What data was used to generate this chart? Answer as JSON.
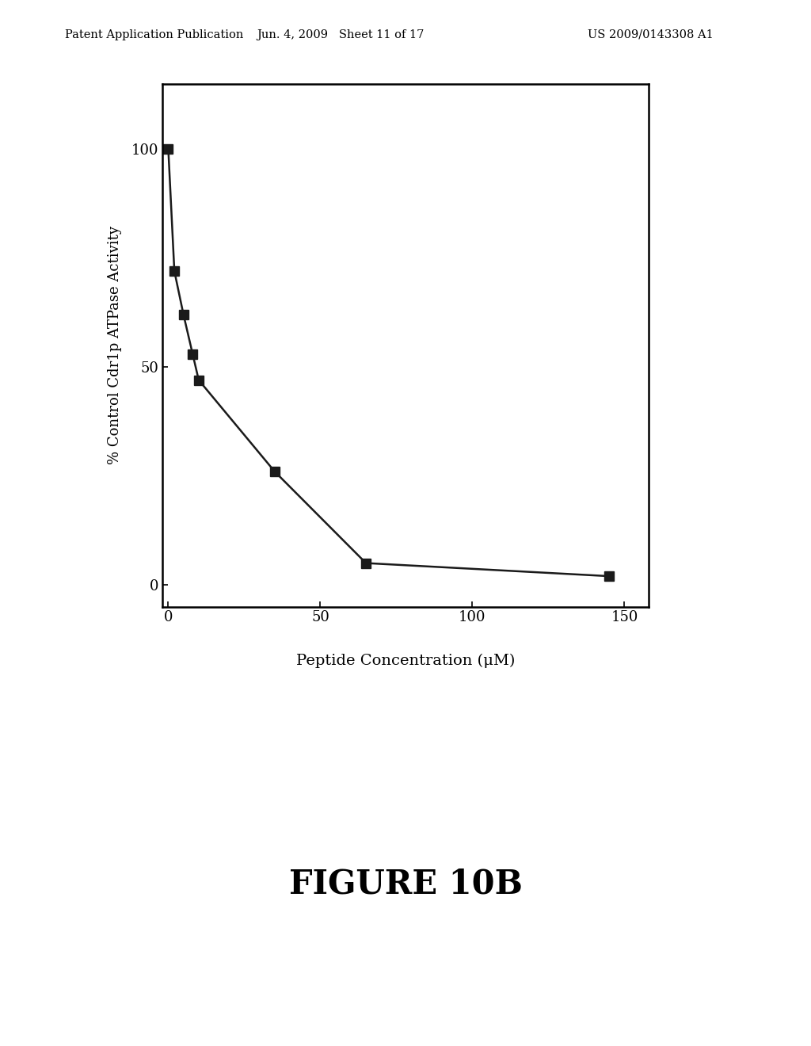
{
  "x": [
    0,
    2,
    5,
    8,
    10,
    35,
    65,
    145
  ],
  "y": [
    100,
    72,
    62,
    53,
    47,
    26,
    5,
    2
  ],
  "line_color": "#1a1a1a",
  "marker_color": "#1a1a1a",
  "marker_size": 8,
  "line_width": 1.8,
  "xlim": [
    -2,
    158
  ],
  "ylim": [
    -5,
    115
  ],
  "xticks": [
    0,
    50,
    100,
    150
  ],
  "yticks": [
    0,
    50,
    100
  ],
  "xlabel": "Peptide Concentration (μM)",
  "ylabel": "% Control Cdr1p ATPase Activity",
  "figure_title": "FIGURE 10B",
  "header_left": "Patent Application Publication",
  "header_center": "Jun. 4, 2009   Sheet 11 of 17",
  "header_right": "US 2009/0143308 A1",
  "bg_color": "#ffffff",
  "box_color": "#000000",
  "axis_label_fontsize": 13,
  "tick_fontsize": 13,
  "figure_title_fontsize": 30,
  "header_fontsize": 10.5
}
